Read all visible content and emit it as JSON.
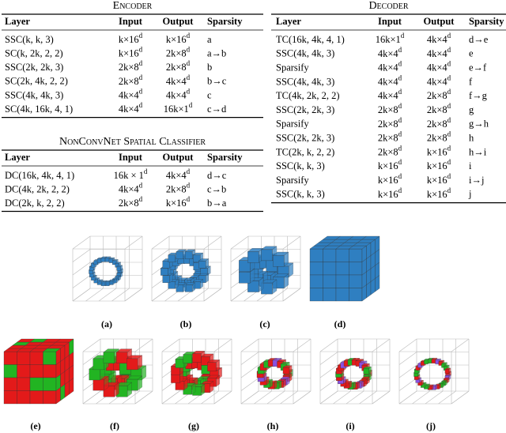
{
  "encoder": {
    "title": "Encoder",
    "header": [
      "Layer",
      "Input",
      "Output",
      "Sparsity"
    ],
    "rows": [
      [
        "SSC(k, k, 3)",
        {
          "base": "k×16",
          "sup": "d"
        },
        {
          "base": "k×16",
          "sup": "d"
        },
        "a"
      ],
      [
        "SC(k, 2k, 2, 2)",
        {
          "base": "k×16",
          "sup": "d"
        },
        {
          "base": "2k×8",
          "sup": "d"
        },
        "a→b"
      ],
      [
        "SSC(2k, 2k, 3)",
        {
          "base": "2k×8",
          "sup": "d"
        },
        {
          "base": "2k×8",
          "sup": "d"
        },
        "b"
      ],
      [
        "SC(2k, 4k, 2, 2)",
        {
          "base": "2k×8",
          "sup": "d"
        },
        {
          "base": "4k×4",
          "sup": "d"
        },
        "b→c"
      ],
      [
        "SSC(4k, 4k, 3)",
        {
          "base": "4k×4",
          "sup": "d"
        },
        {
          "base": "4k×4",
          "sup": "d"
        },
        "c"
      ],
      [
        "SC(4k, 16k, 4, 1)",
        {
          "base": "4k×4",
          "sup": "d"
        },
        {
          "base": "16k×1",
          "sup": "d"
        },
        "c→d"
      ]
    ]
  },
  "classifier": {
    "title": "NonConvNet Spatial Classifier",
    "header": [
      "Layer",
      "Input",
      "Output",
      "Sparsity"
    ],
    "rows": [
      [
        "DC(16k, 4k, 4, 1)",
        {
          "base": "16k × 1",
          "sup": "d"
        },
        {
          "base": "4k×4",
          "sup": "d"
        },
        "d→c"
      ],
      [
        "DC(4k, 2k, 2, 2)",
        {
          "base": "4k×4",
          "sup": "d"
        },
        {
          "base": "2k×8",
          "sup": "d"
        },
        "c→b"
      ],
      [
        "DC(2k, k, 2, 2)",
        {
          "base": "2k×8",
          "sup": "d"
        },
        {
          "base": "k×16",
          "sup": "d"
        },
        "b→a"
      ]
    ]
  },
  "decoder": {
    "title": "Decoder",
    "header": [
      "Layer",
      "Input",
      "Output",
      "Sparsity"
    ],
    "rows": [
      [
        "TC(16k, 4k, 4, 1)",
        {
          "base": "16k×1",
          "sup": "d"
        },
        {
          "base": "4k×4",
          "sup": "d"
        },
        "d→e"
      ],
      [
        "SSC(4k, 4k, 3)",
        {
          "base": "4k×4",
          "sup": "d"
        },
        {
          "base": "4k×4",
          "sup": "d"
        },
        "e"
      ],
      [
        "Sparsify",
        {
          "base": "4k×4",
          "sup": "d"
        },
        {
          "base": "4k×4",
          "sup": "d"
        },
        "e→f"
      ],
      [
        "SSC(4k, 4k, 3)",
        {
          "base": "4k×4",
          "sup": "d"
        },
        {
          "base": "4k×4",
          "sup": "d"
        },
        "f"
      ],
      [
        "TC(4k, 2k, 2, 2)",
        {
          "base": "4k×4",
          "sup": "d"
        },
        {
          "base": "2k×8",
          "sup": "d"
        },
        "f→g"
      ],
      [
        "SSC(2k, 2k, 3)",
        {
          "base": "2k×8",
          "sup": "d"
        },
        {
          "base": "2k×8",
          "sup": "d"
        },
        "g"
      ],
      [
        "Sparsify",
        {
          "base": "2k×8",
          "sup": "d"
        },
        {
          "base": "2k×8",
          "sup": "d"
        },
        "g→h"
      ],
      [
        "SSC(2k, 2k, 3)",
        {
          "base": "2k×8",
          "sup": "d"
        },
        {
          "base": "2k×8",
          "sup": "d"
        },
        "h"
      ],
      [
        "TC(2k, k, 2, 2)",
        {
          "base": "2k×8",
          "sup": "d"
        },
        {
          "base": "k×16",
          "sup": "d"
        },
        "h→i"
      ],
      [
        "SSC(k, k, 3)",
        {
          "base": "k×16",
          "sup": "d"
        },
        {
          "base": "k×16",
          "sup": "d"
        },
        "i"
      ],
      [
        "Sparsify",
        {
          "base": "k×16",
          "sup": "d"
        },
        {
          "base": "k×16",
          "sup": "d"
        },
        "i→j"
      ],
      [
        "SSC(k, k, 3)",
        {
          "base": "k×16",
          "sup": "d"
        },
        {
          "base": "k×16",
          "sup": "d"
        },
        "j"
      ]
    ]
  },
  "figure": {
    "captions": [
      "(a)",
      "(b)",
      "(c)",
      "(d)",
      "(e)",
      "(f)",
      "(g)",
      "(h)",
      "(i)",
      "(j)"
    ]
  }
}
